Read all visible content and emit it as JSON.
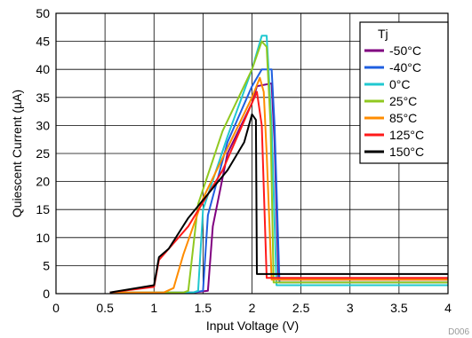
{
  "chart_data": {
    "type": "line",
    "xlabel": "Input Voltage (V)",
    "ylabel": "Quiescent Current (µA)",
    "xlim": [
      0,
      4
    ],
    "ylim": [
      0,
      50
    ],
    "xticks": [
      "0",
      "0.5",
      "1",
      "1.5",
      "2",
      "2.5",
      "3",
      "3.5",
      "4"
    ],
    "yticks": [
      "0",
      "5",
      "10",
      "15",
      "20",
      "25",
      "30",
      "35",
      "40",
      "45",
      "50"
    ],
    "grid": true,
    "legend_title": "Tj",
    "legend_position": "top-right",
    "watermark": "D006",
    "series": [
      {
        "name": "-50°C",
        "color": "#800080",
        "x": [
          0.55,
          1.4,
          1.55,
          1.6,
          1.75,
          2.0,
          2.05,
          2.2,
          2.23,
          2.27,
          4.0
        ],
        "y": [
          0.2,
          0.2,
          0.5,
          12,
          25,
          34,
          37,
          37.5,
          27,
          2.5,
          2.5
        ]
      },
      {
        "name": "-40°C",
        "color": "#1f5fe0",
        "x": [
          0.55,
          1.4,
          1.5,
          1.55,
          1.75,
          2.0,
          2.1,
          2.2,
          2.23,
          2.28,
          4.0
        ],
        "y": [
          0.2,
          0.2,
          0.5,
          14,
          27,
          37,
          40,
          40,
          30,
          2,
          2
        ]
      },
      {
        "name": "0°C",
        "color": "#20c8d0",
        "x": [
          0.55,
          1.4,
          1.45,
          1.5,
          1.75,
          2.0,
          2.1,
          2.15,
          2.2,
          2.25,
          4.0
        ],
        "y": [
          0.2,
          0.2,
          0.5,
          15,
          28,
          40,
          46,
          46,
          30,
          1.5,
          1.5
        ]
      },
      {
        "name": "25°C",
        "color": "#90c820",
        "x": [
          0.55,
          1.3,
          1.35,
          1.45,
          1.7,
          2.0,
          2.1,
          2.15,
          2.19,
          2.22,
          4.0
        ],
        "y": [
          0.2,
          0.2,
          0.5,
          16,
          29,
          40,
          45,
          44,
          30,
          2,
          2
        ]
      },
      {
        "name": "85°C",
        "color": "#ff8c00",
        "x": [
          0.55,
          1.1,
          1.2,
          1.3,
          1.5,
          2.0,
          2.08,
          2.12,
          2.15,
          2.2,
          4.0
        ],
        "y": [
          0.2,
          0.2,
          1,
          7,
          17,
          35,
          38.5,
          36,
          25,
          2.5,
          2.5
        ]
      },
      {
        "name": "125°C",
        "color": "#ff1a1a",
        "x": [
          0.55,
          1.0,
          1.05,
          1.35,
          1.7,
          2.0,
          2.05,
          2.1,
          2.15,
          4.0
        ],
        "y": [
          0.2,
          1.2,
          6,
          12,
          22,
          34,
          36,
          30,
          2.8,
          2.8
        ]
      },
      {
        "name": "150°C",
        "color": "#000000",
        "x": [
          0.55,
          1.0,
          1.05,
          1.15,
          1.35,
          1.75,
          1.92,
          2.0,
          2.04,
          2.05,
          4.0
        ],
        "y": [
          0.2,
          1.5,
          6.5,
          8,
          13.5,
          22,
          27,
          32,
          31,
          3.5,
          3.5
        ]
      }
    ]
  }
}
